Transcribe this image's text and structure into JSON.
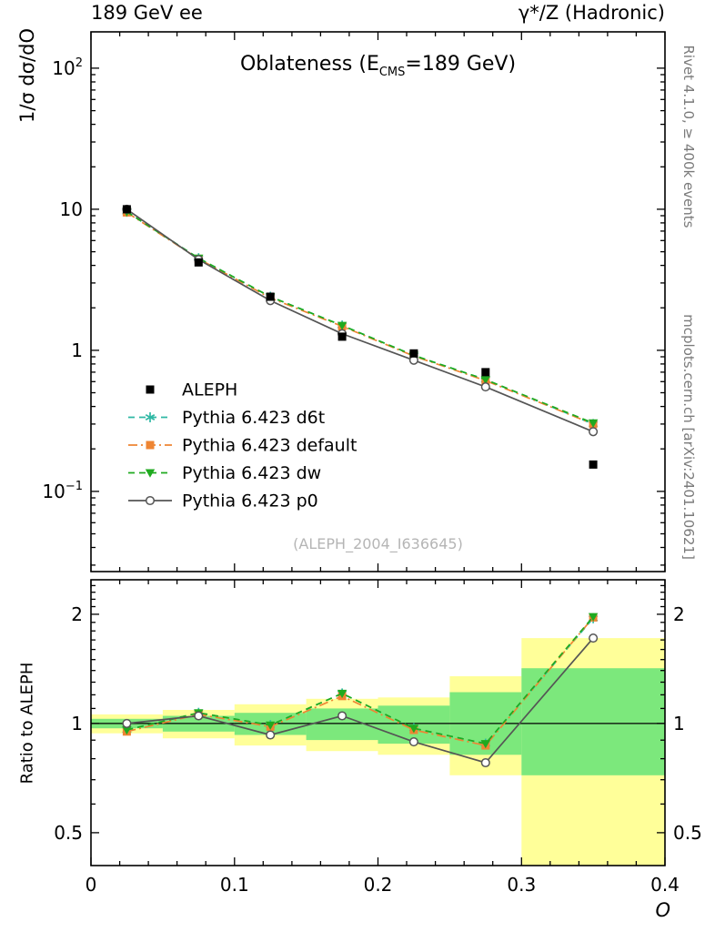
{
  "header": {
    "left": "189 GeV ee",
    "right": "γ*/Z (Hadronic)"
  },
  "title": {
    "pre": "Oblateness (E",
    "sub": "CMS",
    "post": "=189 GeV)"
  },
  "axis_titles": {
    "main_y": "1/σ dσ/dO",
    "ratio_y": "Ratio to ALEPH",
    "x": "O"
  },
  "side_notes": {
    "rivet": "Rivet 4.1.0, ≥ 400k events",
    "mcplots": "mcplots.cern.ch [arXiv:2401.10621]"
  },
  "watermark": "(ALEPH_2004_I636645)",
  "colors": {
    "band_yellow": "#ffff99",
    "band_green": "#7ce87c",
    "frame": "#000000",
    "watermark": "#b5b5b5",
    "side_note": "#7a7a7a"
  },
  "chart_data": {
    "type": "line",
    "title": "Oblateness (E_CMS=189 GeV)",
    "xlabel": "O",
    "ylabel_main": "1/σ dσ/dO",
    "ylabel_ratio": "Ratio to ALEPH",
    "xlim": [
      0,
      0.4
    ],
    "x_minor_step": 0.02,
    "x_ticks": [
      {
        "v": 0,
        "label": "0"
      },
      {
        "v": 0.1,
        "label": "0.1"
      },
      {
        "v": 0.2,
        "label": "0.2"
      },
      {
        "v": 0.3,
        "label": "0.3"
      },
      {
        "v": 0.4,
        "label": "0.4"
      }
    ],
    "main_ylog": true,
    "main_ylim": [
      0.027,
      181
    ],
    "main_yticks": [
      {
        "v": 100,
        "base": "10",
        "exp": "2"
      },
      {
        "v": 10,
        "base": "10",
        "exp": ""
      },
      {
        "v": 1,
        "base": "1",
        "exp": ""
      },
      {
        "v": 0.1,
        "base": "10",
        "exp": "−1"
      }
    ],
    "ratio_ylog": true,
    "ratio_ylim": [
      0.406,
      2.49
    ],
    "ratio_yticks": [
      {
        "v": 2,
        "label": "2"
      },
      {
        "v": 1,
        "label": "1"
      },
      {
        "v": 0.5,
        "label": "0.5"
      }
    ],
    "x": [
      0.025,
      0.075,
      0.125,
      0.175,
      0.225,
      0.275,
      0.35
    ],
    "series": [
      {
        "key": "aleph",
        "name": "ALEPH",
        "kind": "data",
        "marker": "square",
        "color": "#000000",
        "dash": "",
        "values": [
          10.0,
          4.2,
          2.4,
          1.25,
          0.95,
          0.7,
          0.155
        ]
      },
      {
        "key": "d6t",
        "name": "Pythia 6.423 d6t",
        "kind": "mc",
        "marker": "star",
        "color": "#2fb8a4",
        "dash": "7 5",
        "values": [
          9.6,
          4.5,
          2.4,
          1.5,
          0.92,
          0.62,
          0.3
        ],
        "ratio": [
          0.96,
          1.07,
          0.99,
          1.21,
          0.97,
          0.88,
          1.95
        ]
      },
      {
        "key": "default",
        "name": "Pythia 6.423 default",
        "kind": "mc",
        "marker": "square",
        "color": "#ee8533",
        "dash": "10 4 2 4",
        "values": [
          9.5,
          4.45,
          2.35,
          1.48,
          0.91,
          0.61,
          0.3
        ],
        "ratio": [
          0.95,
          1.06,
          0.98,
          1.19,
          0.96,
          0.87,
          1.96
        ]
      },
      {
        "key": "dw",
        "name": "Pythia 6.423 dw",
        "kind": "mc",
        "marker": "triangle-down",
        "color": "#1faa1f",
        "dash": "7 5",
        "values": [
          9.6,
          4.5,
          2.4,
          1.5,
          0.92,
          0.62,
          0.305
        ],
        "ratio": [
          0.96,
          1.07,
          0.99,
          1.21,
          0.97,
          0.88,
          1.97
        ]
      },
      {
        "key": "p0",
        "name": "Pythia 6.423 p0",
        "kind": "mc",
        "marker": "circle-open",
        "color": "#555555",
        "dash": "",
        "values": [
          10.0,
          4.4,
          2.25,
          1.31,
          0.85,
          0.55,
          0.265
        ],
        "ratio": [
          1.0,
          1.05,
          0.93,
          1.05,
          0.89,
          0.78,
          1.72
        ]
      }
    ],
    "bands": {
      "edges": [
        0,
        0.05,
        0.1,
        0.15,
        0.2,
        0.25,
        0.3,
        0.4
      ],
      "yellow": [
        [
          0.94,
          1.06
        ],
        [
          0.91,
          1.09
        ],
        [
          0.87,
          1.13
        ],
        [
          0.84,
          1.17
        ],
        [
          0.82,
          1.18
        ],
        [
          0.72,
          1.35
        ],
        [
          0.35,
          1.72
        ]
      ],
      "green": [
        [
          0.97,
          1.03
        ],
        [
          0.95,
          1.05
        ],
        [
          0.93,
          1.07
        ],
        [
          0.9,
          1.1
        ],
        [
          0.88,
          1.12
        ],
        [
          0.82,
          1.22
        ],
        [
          0.72,
          1.42
        ]
      ]
    },
    "legend_position": "middle-left",
    "grid": false
  }
}
